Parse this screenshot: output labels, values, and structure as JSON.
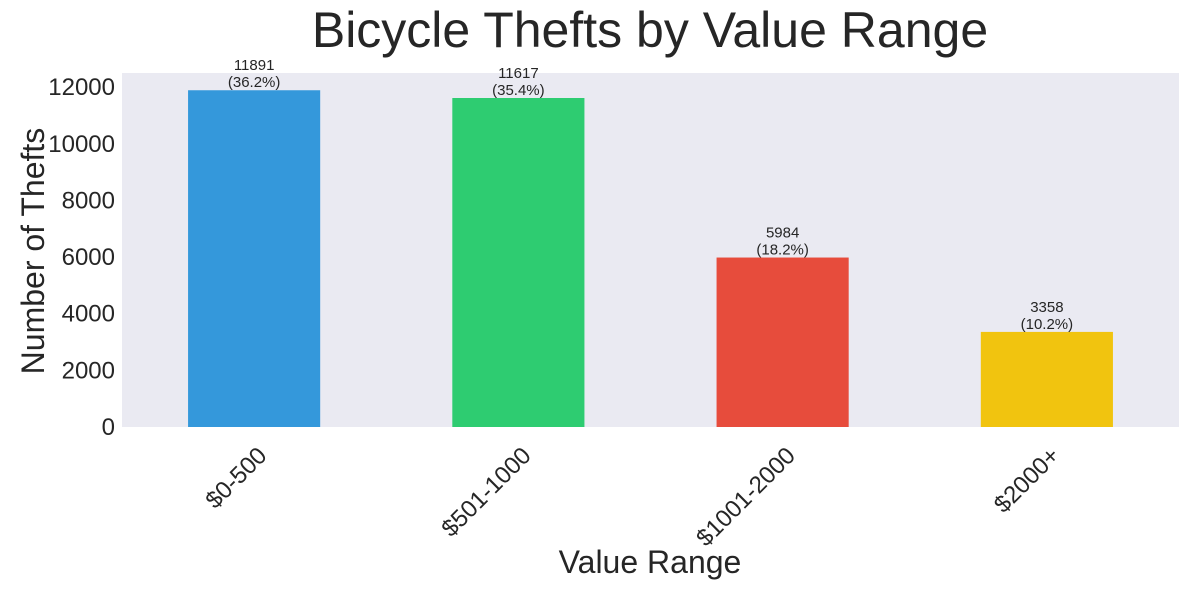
{
  "chart_data": {
    "type": "bar",
    "title": "Bicycle Thefts by Value Range",
    "xlabel": "Value Range",
    "ylabel": "Number of Thefts",
    "categories": [
      "$0-500",
      "$501-1000",
      "$1001-2000",
      "$2000+"
    ],
    "values": [
      11891,
      11617,
      5984,
      3358
    ],
    "data_labels": [
      [
        "11891",
        "(36.2%)"
      ],
      [
        "11617",
        "(35.4%)"
      ],
      [
        "5984",
        "(18.2%)"
      ],
      [
        "3358",
        "(10.2%)"
      ]
    ],
    "colors": [
      "#3498db",
      "#2ecc71",
      "#e74c3c",
      "#f1c40f"
    ],
    "yticks": [
      0,
      2000,
      4000,
      6000,
      8000,
      10000,
      12000
    ],
    "ylim": [
      0,
      12500
    ],
    "grid": false,
    "legend": "none",
    "plot_background": "#eaeaf2"
  }
}
